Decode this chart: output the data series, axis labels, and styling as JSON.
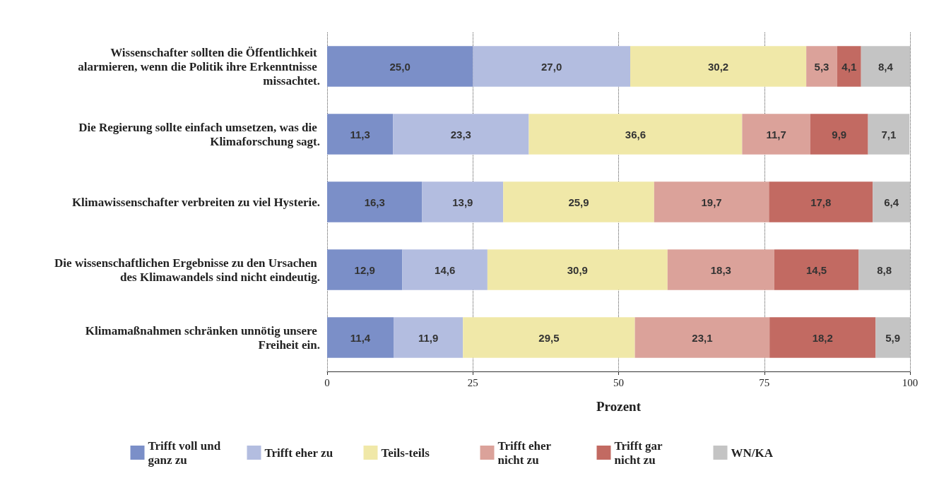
{
  "chart_data": {
    "type": "bar",
    "orientation": "horizontal",
    "stacked": true,
    "xlabel": "Prozent",
    "categories": [
      "Wissenschafter sollten die Öffentlichkeit alarmieren, wenn die Politik ihre Erkenntnisse missachtet.",
      "Die Regierung sollte einfach umsetzen, was die Klimaforschung sagt.",
      "Klimawissenschafter verbreiten zu viel Hysterie.",
      "Die wissenschaftlichen Ergebnisse zu den Ursachen des Klimawandels sind nicht eindeutig.",
      "Klimamaßnahmen schränken unnötig unsere Freiheit ein."
    ],
    "series": [
      {
        "name": "Trifft voll und ganz zu",
        "color": "#7b8fc8",
        "values": [
          25.0,
          11.3,
          16.3,
          12.9,
          11.4
        ],
        "value_labels": [
          "25,0",
          "11,3",
          "16,3",
          "12,9",
          "11,4"
        ]
      },
      {
        "name": "Trifft eher zu",
        "color": "#b3bde0",
        "values": [
          27.0,
          23.3,
          13.9,
          14.6,
          11.9
        ],
        "value_labels": [
          "27,0",
          "23,3",
          "13,9",
          "14,6",
          "11,9"
        ]
      },
      {
        "name": "Teils-teils",
        "color": "#f0e8a8",
        "values": [
          30.2,
          36.6,
          25.9,
          30.9,
          29.5
        ],
        "value_labels": [
          "30,2",
          "36,6",
          "25,9",
          "30,9",
          "29,5"
        ]
      },
      {
        "name": "Trifft eher nicht zu",
        "color": "#dba29a",
        "values": [
          5.3,
          11.7,
          19.7,
          18.3,
          23.1
        ],
        "value_labels": [
          "5,3",
          "11,7",
          "19,7",
          "18,3",
          "23,1"
        ]
      },
      {
        "name": "Trifft gar nicht zu",
        "color": "#c26a62",
        "values": [
          4.1,
          9.9,
          17.8,
          14.5,
          18.2
        ],
        "value_labels": [
          "4,1",
          "9,9",
          "17,8",
          "14,5",
          "18,2"
        ]
      },
      {
        "name": "WN/KA",
        "color": "#c4c4c4",
        "values": [
          8.4,
          7.1,
          6.4,
          8.8,
          5.9
        ],
        "value_labels": [
          "8,4",
          "7,1",
          "6,4",
          "8,8",
          "5,9"
        ]
      }
    ],
    "xlim": [
      0,
      100
    ],
    "xticks": [
      0,
      25,
      50,
      75,
      100
    ],
    "grid": "x",
    "legend": "bottom"
  }
}
